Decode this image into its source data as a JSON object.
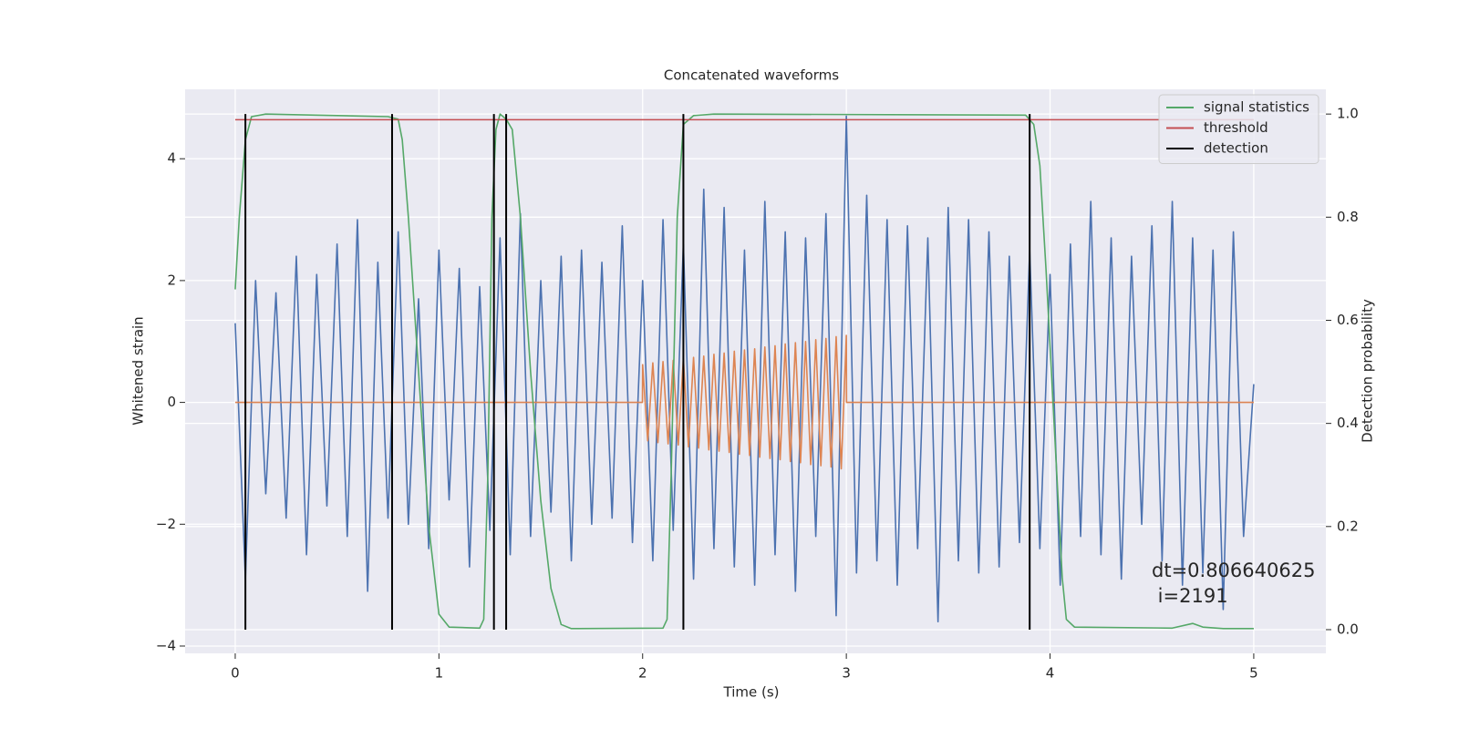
{
  "chart_data": {
    "type": "line",
    "title": "Concatenated waveforms",
    "xlabel": "Time (s)",
    "ylabel": "Whitened strain",
    "y2label": "Detection probability",
    "xlim": [
      -0.246,
      5.354
    ],
    "ylim": [
      -4.12,
      5.14
    ],
    "y2lim": [
      -0.046,
      1.048
    ],
    "xticks": [
      0,
      1,
      2,
      3,
      4,
      5
    ],
    "yticks": [
      {
        "value": -4,
        "label": "−4"
      },
      {
        "value": -2,
        "label": "−2"
      },
      0,
      2,
      4
    ],
    "y2ticks": [
      {
        "value": 0,
        "label": "0.0"
      },
      0.2,
      0.4,
      0.6,
      0.8,
      {
        "value": 1,
        "label": "1.0"
      }
    ],
    "grid": true,
    "legend": "upper right",
    "annotation": [
      "dt=0.806640625",
      " i=2191"
    ],
    "series": [
      {
        "color": "#4c72b0",
        "x": [
          0,
          0.05,
          0.1,
          0.15,
          0.2,
          0.25,
          0.3,
          0.35,
          0.4,
          0.45,
          0.5,
          0.55,
          0.6,
          0.65,
          0.7,
          0.75,
          0.8,
          0.85,
          0.9,
          0.95,
          1,
          1.05,
          1.1,
          1.15,
          1.2,
          1.25,
          1.3,
          1.35,
          1.4,
          1.45,
          1.5,
          1.55,
          1.6,
          1.65,
          1.7,
          1.75,
          1.8,
          1.85,
          1.9,
          1.95,
          2,
          2.05,
          2.1,
          2.15,
          2.2,
          2.25,
          2.3,
          2.35,
          2.4,
          2.45,
          2.5,
          2.55,
          2.6,
          2.65,
          2.7,
          2.75,
          2.8,
          2.85,
          2.9,
          2.95,
          3,
          3.05,
          3.1,
          3.15,
          3.2,
          3.25,
          3.3,
          3.35,
          3.4,
          3.45,
          3.5,
          3.55,
          3.6,
          3.65,
          3.7,
          3.75,
          3.8,
          3.85,
          3.9,
          3.95,
          4,
          4.05,
          4.1,
          4.15,
          4.2,
          4.25,
          4.3,
          4.35,
          4.4,
          4.45,
          4.5,
          4.55,
          4.6,
          4.65,
          4.7,
          4.75,
          4.8,
          4.85,
          4.9,
          4.95,
          5
        ],
        "values": [
          1.3,
          -2.9,
          2.0,
          -1.5,
          1.8,
          -1.9,
          2.4,
          -2.5,
          2.1,
          -1.7,
          2.6,
          -2.2,
          3.0,
          -3.1,
          2.3,
          -1.9,
          2.8,
          -2.0,
          1.7,
          -2.4,
          2.5,
          -1.6,
          2.2,
          -2.7,
          1.9,
          -2.1,
          2.7,
          -2.5,
          3.1,
          -2.2,
          2.0,
          -1.8,
          2.4,
          -2.6,
          2.5,
          -2.0,
          2.3,
          -1.9,
          2.9,
          -2.3,
          2.0,
          -2.6,
          3.0,
          -2.1,
          2.6,
          -2.9,
          3.5,
          -2.4,
          3.2,
          -2.7,
          2.5,
          -3.0,
          3.3,
          -2.5,
          2.8,
          -3.1,
          2.7,
          -2.2,
          3.1,
          -3.5,
          4.7,
          -2.8,
          3.4,
          -2.6,
          3.0,
          -3.0,
          2.9,
          -2.4,
          2.7,
          -3.6,
          3.2,
          -2.6,
          3.0,
          -2.8,
          2.8,
          -2.7,
          2.4,
          -2.3,
          2.5,
          -2.4,
          2.1,
          -3.0,
          2.6,
          -2.2,
          3.3,
          -2.5,
          2.7,
          -2.9,
          2.4,
          -2.0,
          2.9,
          -2.6,
          3.3,
          -3.0,
          2.7,
          -2.8,
          2.5,
          -3.4,
          2.8,
          -2.2,
          0.3
        ]
      },
      {
        "color": "#dd8452",
        "x": [
          0,
          1.999,
          2,
          2.025,
          2.05,
          2.075,
          2.1,
          2.125,
          2.15,
          2.175,
          2.2,
          2.225,
          2.25,
          2.275,
          2.3,
          2.325,
          2.35,
          2.375,
          2.4,
          2.425,
          2.45,
          2.475,
          2.5,
          2.525,
          2.55,
          2.575,
          2.6,
          2.625,
          2.65,
          2.675,
          2.7,
          2.725,
          2.75,
          2.775,
          2.8,
          2.825,
          2.85,
          2.875,
          2.9,
          2.925,
          2.95,
          2.975,
          3,
          3.001,
          5
        ],
        "values": [
          0,
          0,
          0.62,
          -0.63,
          0.65,
          -0.66,
          0.67,
          -0.68,
          0.69,
          -0.7,
          0.72,
          -0.73,
          0.74,
          -0.75,
          0.76,
          -0.78,
          0.79,
          -0.8,
          0.81,
          -0.82,
          0.84,
          -0.85,
          0.86,
          -0.87,
          0.88,
          -0.9,
          0.91,
          -0.92,
          0.93,
          -0.94,
          0.96,
          -0.97,
          0.98,
          -0.99,
          1.0,
          -1.02,
          1.03,
          -1.04,
          1.05,
          -1.06,
          1.08,
          -1.09,
          1.1,
          0,
          0
        ]
      },
      {
        "name": "signal statistics",
        "color": "#55a868",
        "axis": "y2",
        "x": [
          0,
          0.02,
          0.05,
          0.08,
          0.15,
          0.75,
          0.8,
          0.82,
          0.85,
          0.9,
          0.95,
          1.0,
          1.05,
          1.2,
          1.22,
          1.24,
          1.26,
          1.28,
          1.3,
          1.33,
          1.36,
          1.4,
          1.45,
          1.5,
          1.55,
          1.6,
          1.65,
          2.1,
          2.12,
          2.14,
          2.17,
          2.2,
          2.25,
          2.35,
          3.88,
          3.92,
          3.95,
          3.98,
          4.02,
          4.06,
          4.08,
          4.12,
          4.6,
          4.7,
          4.75,
          4.85,
          5.0
        ],
        "values": [
          0.66,
          0.8,
          0.95,
          0.995,
          1.0,
          0.995,
          0.99,
          0.95,
          0.8,
          0.5,
          0.2,
          0.03,
          0.005,
          0.003,
          0.02,
          0.3,
          0.8,
          0.97,
          1.0,
          0.99,
          0.97,
          0.8,
          0.5,
          0.25,
          0.08,
          0.01,
          0.002,
          0.003,
          0.02,
          0.3,
          0.8,
          0.98,
          0.997,
          1.0,
          0.998,
          0.98,
          0.9,
          0.7,
          0.4,
          0.1,
          0.02,
          0.005,
          0.003,
          0.012,
          0.005,
          0.002,
          0.002
        ]
      },
      {
        "name": "threshold",
        "color": "#c44e52",
        "axis": "y2",
        "x": [
          0,
          5
        ],
        "values": [
          0.989,
          0.989
        ]
      },
      {
        "name": "detection",
        "type": "vlines",
        "color": "#000000",
        "axis": "y2",
        "x": [
          0.05,
          0.77,
          1.27,
          1.33,
          2.2,
          3.9
        ],
        "values": [
          1,
          1,
          1,
          1,
          1,
          1
        ]
      }
    ]
  }
}
